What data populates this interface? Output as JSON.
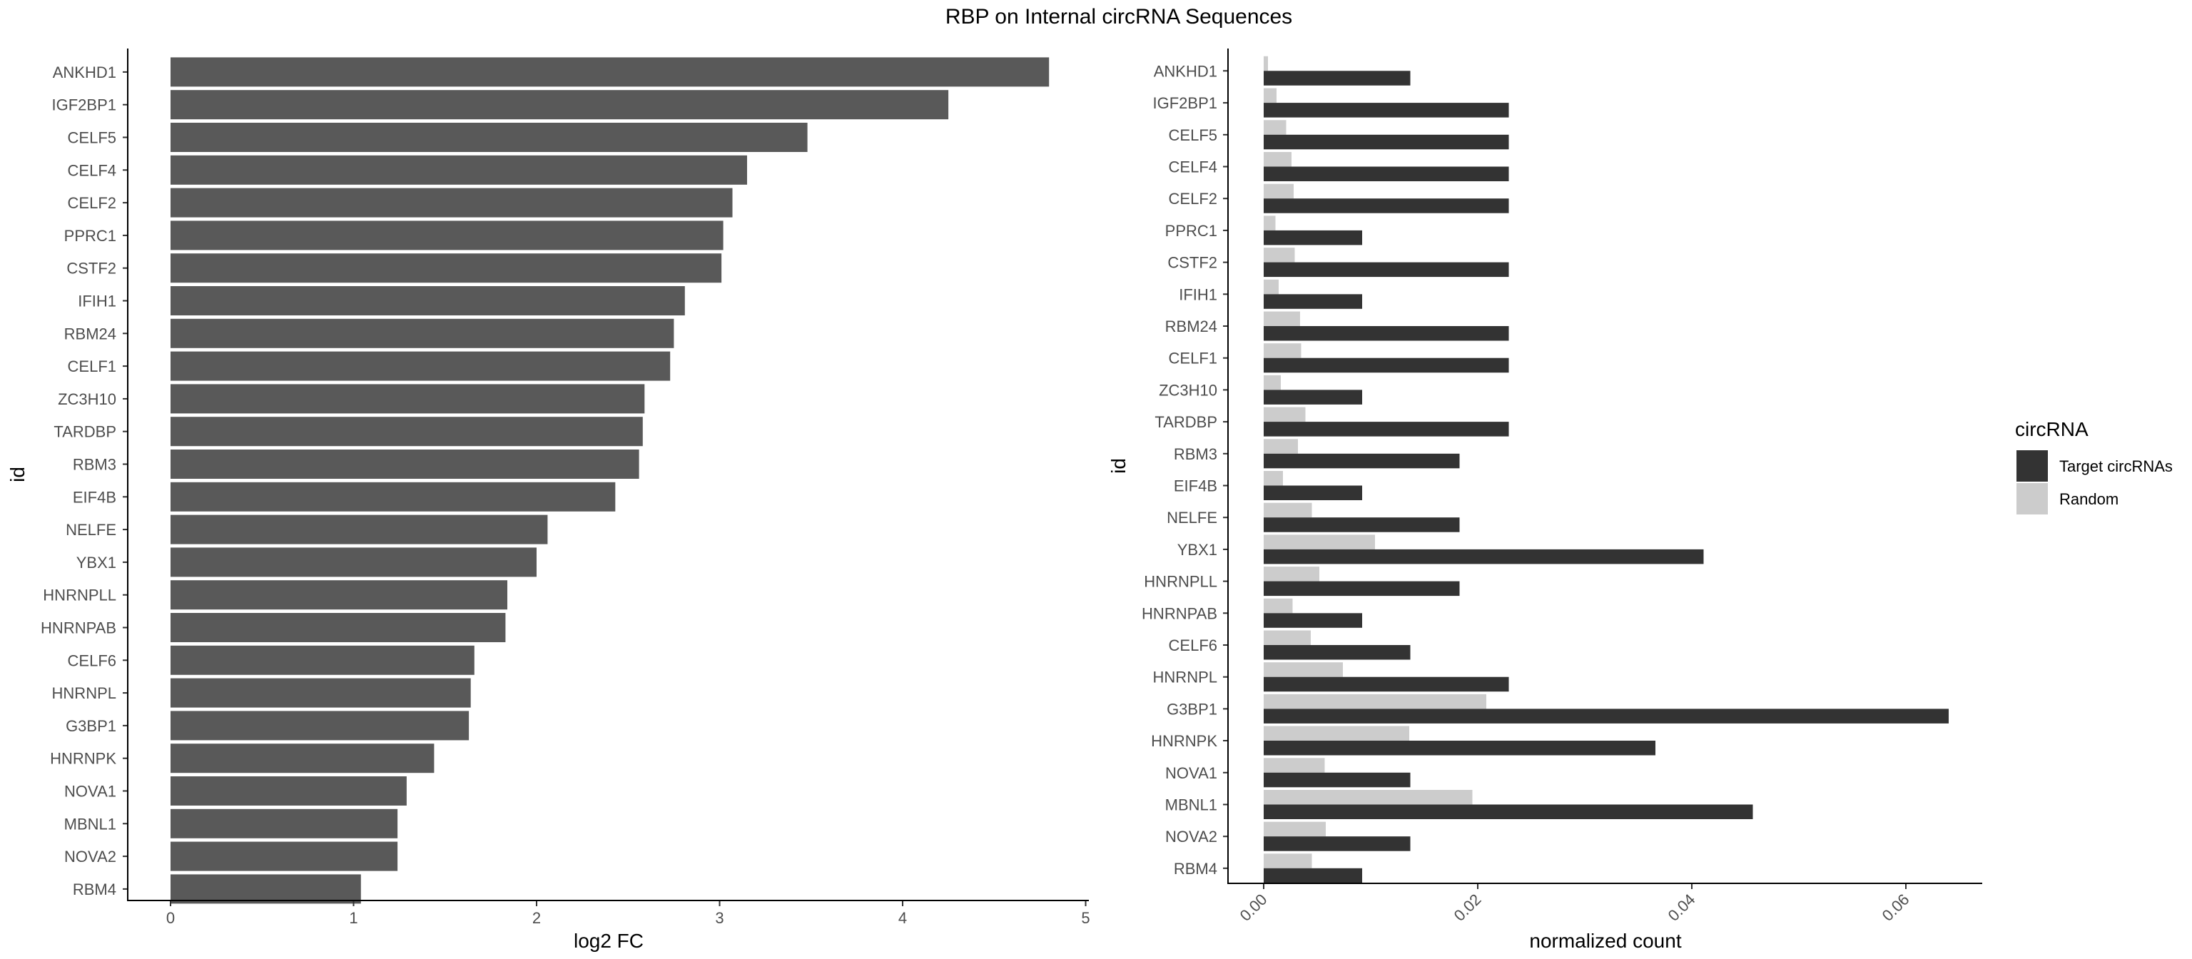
{
  "title": "RBP on Internal circRNA Sequences",
  "chart_data": [
    {
      "type": "bar",
      "orientation": "horizontal",
      "xlabel": "log2 FC",
      "ylabel": "id",
      "xlim": [
        0,
        5
      ],
      "xticks": [
        "0",
        "1",
        "2",
        "3",
        "4",
        "5"
      ],
      "grid": false,
      "bar_color": "#595959",
      "categories": [
        "ANKHD1",
        "IGF2BP1",
        "CELF5",
        "CELF4",
        "CELF2",
        "PPRC1",
        "CSTF2",
        "IFIH1",
        "RBM24",
        "CELF1",
        "ZC3H10",
        "TARDBP",
        "RBM3",
        "EIF4B",
        "NELFE",
        "YBX1",
        "HNRNPLL",
        "HNRNPAB",
        "CELF6",
        "HNRNPL",
        "G3BP1",
        "HNRNPK",
        "NOVA1",
        "MBNL1",
        "NOVA2",
        "RBM4"
      ],
      "values": [
        4.8,
        4.25,
        3.48,
        3.15,
        3.07,
        3.02,
        3.01,
        2.81,
        2.75,
        2.73,
        2.59,
        2.58,
        2.56,
        2.43,
        2.06,
        2.0,
        1.84,
        1.83,
        1.66,
        1.64,
        1.63,
        1.44,
        1.29,
        1.24,
        1.24,
        1.04
      ]
    },
    {
      "type": "bar",
      "orientation": "horizontal",
      "grouped": true,
      "xlabel": "normalized count",
      "ylabel": "id",
      "xlim": [
        -0.0031,
        0.0668
      ],
      "xticks": [
        "0.00",
        "0.02",
        "0.04",
        "0.06"
      ],
      "xtick_values": [
        0,
        0.02,
        0.04,
        0.06
      ],
      "grid": false,
      "legend_position": "right",
      "legend_title": "circRNA",
      "categories": [
        "ANKHD1",
        "IGF2BP1",
        "CELF5",
        "CELF4",
        "CELF2",
        "PPRC1",
        "CSTF2",
        "IFIH1",
        "RBM24",
        "CELF1",
        "ZC3H10",
        "TARDBP",
        "RBM3",
        "EIF4B",
        "NELFE",
        "YBX1",
        "HNRNPLL",
        "HNRNPAB",
        "CELF6",
        "HNRNPL",
        "G3BP1",
        "HNRNPK",
        "NOVA1",
        "MBNL1",
        "NOVA2",
        "RBM4"
      ],
      "series": [
        {
          "name": "Target circRNAs",
          "color": "#333333",
          "values": [
            0.0137,
            0.0229,
            0.0229,
            0.0229,
            0.0229,
            0.0092,
            0.0229,
            0.0092,
            0.0229,
            0.0229,
            0.0092,
            0.0229,
            0.0183,
            0.0092,
            0.0183,
            0.0411,
            0.0183,
            0.0092,
            0.0137,
            0.0229,
            0.064,
            0.0366,
            0.0137,
            0.0457,
            0.0137,
            0.0092
          ]
        },
        {
          "name": "Random",
          "color": "#cccccc",
          "values": [
            0.0004,
            0.0012,
            0.0021,
            0.0026,
            0.0028,
            0.0011,
            0.0029,
            0.0014,
            0.0034,
            0.0035,
            0.0016,
            0.0039,
            0.0032,
            0.0018,
            0.0045,
            0.0104,
            0.0052,
            0.0027,
            0.0044,
            0.0074,
            0.0208,
            0.0136,
            0.0057,
            0.0195,
            0.0058,
            0.0045
          ]
        }
      ]
    }
  ]
}
